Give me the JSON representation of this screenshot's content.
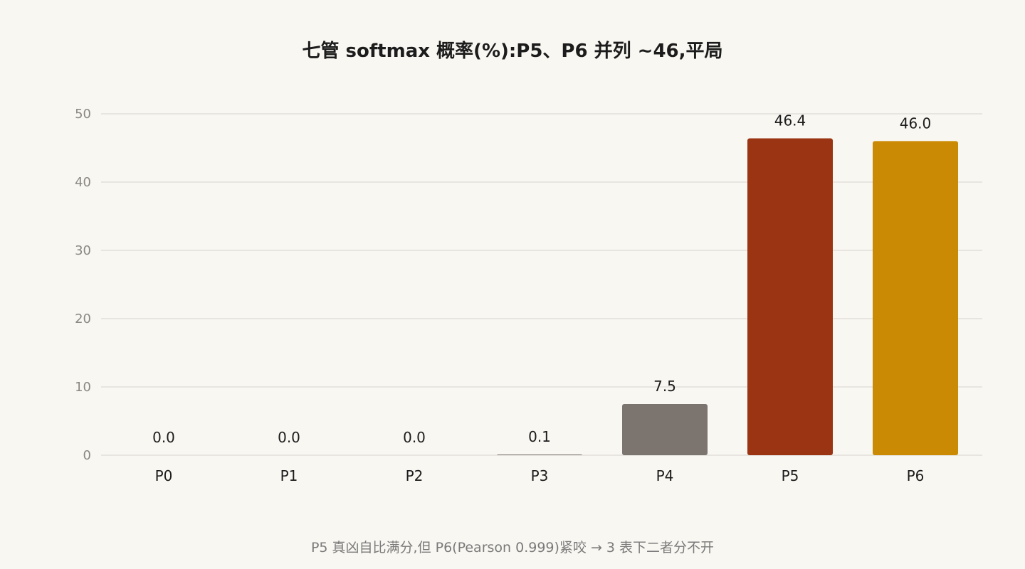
{
  "chart_data": {
    "type": "bar",
    "title": "七管 softmax 概率(%):P5、P6 并列 ~46,平局",
    "footnote": "P5 真凶自比满分,但 P6(Pearson 0.999)紧咬 → 3 表下二者分不开",
    "xlabel": "",
    "ylabel": "",
    "ylim": [
      0,
      50
    ],
    "yticks": [
      0,
      10,
      20,
      30,
      40,
      50
    ],
    "grid": true,
    "categories": [
      "P0",
      "P1",
      "P2",
      "P3",
      "P4",
      "P5",
      "P6"
    ],
    "values": [
      0.0,
      0.0,
      0.0,
      0.1,
      7.5,
      46.4,
      46.0
    ],
    "value_labels": [
      "0.0",
      "0.0",
      "0.0",
      "0.1",
      "7.5",
      "46.4",
      "46.0"
    ],
    "colors": [
      "#7c746e",
      "#7c746e",
      "#7c746e",
      "#7c746e",
      "#7c746e",
      "#9a3412",
      "#ca8a04"
    ]
  }
}
